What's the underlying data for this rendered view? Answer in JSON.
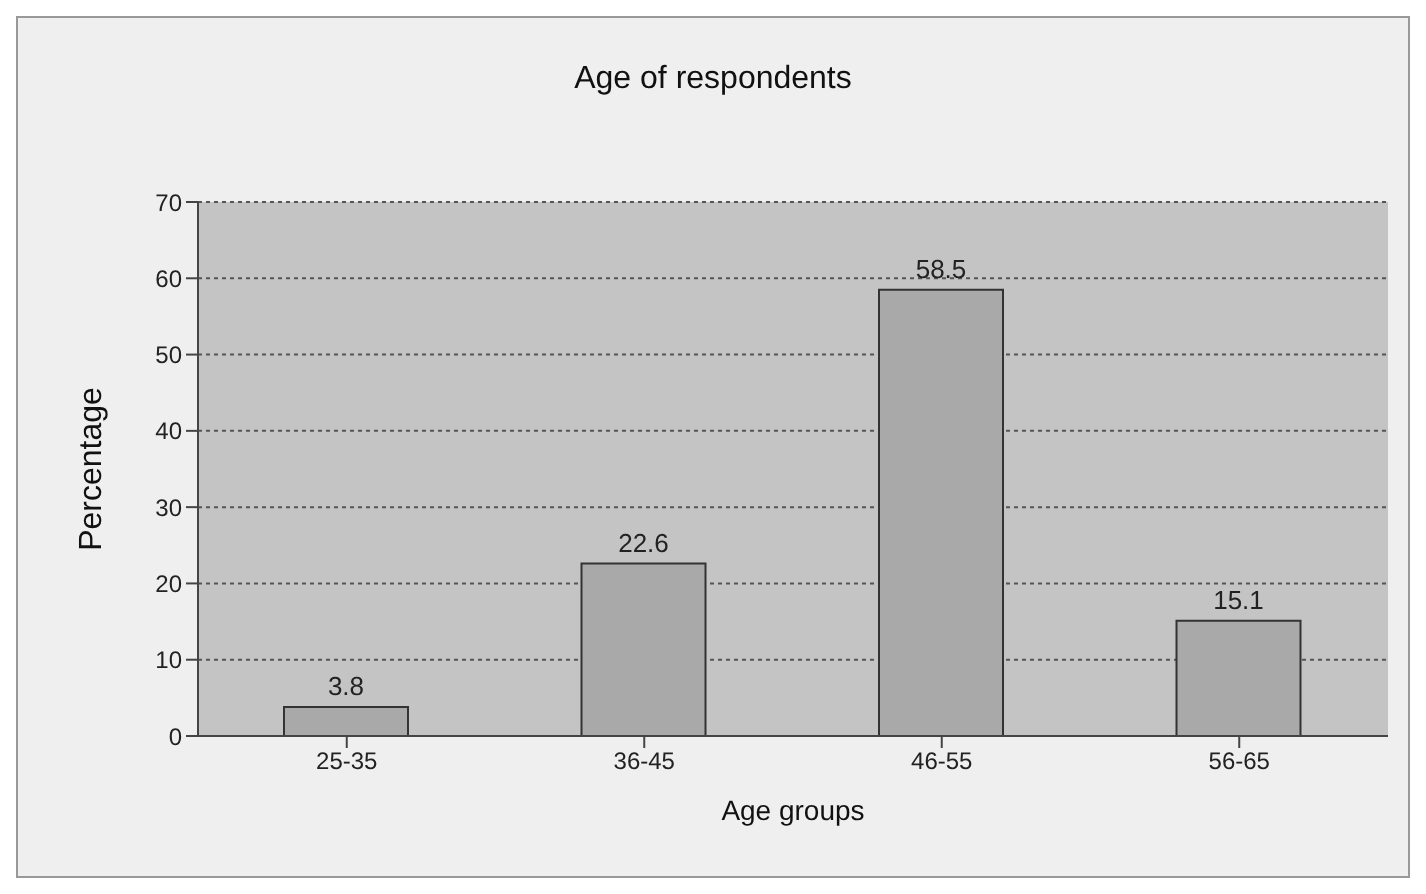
{
  "chart_data": {
    "type": "bar",
    "title": "Age of respondents",
    "xlabel": "Age groups",
    "ylabel": "Percentage",
    "categories": [
      "25-35",
      "36-45",
      "46-55",
      "56-65"
    ],
    "values": [
      3.8,
      22.6,
      58.5,
      15.1
    ],
    "color": "#a9a9a9",
    "ylim": [
      0,
      70
    ],
    "yticks": [
      0,
      10,
      20,
      30,
      40,
      50,
      60,
      70
    ],
    "grid": "y",
    "data_labels": true
  }
}
